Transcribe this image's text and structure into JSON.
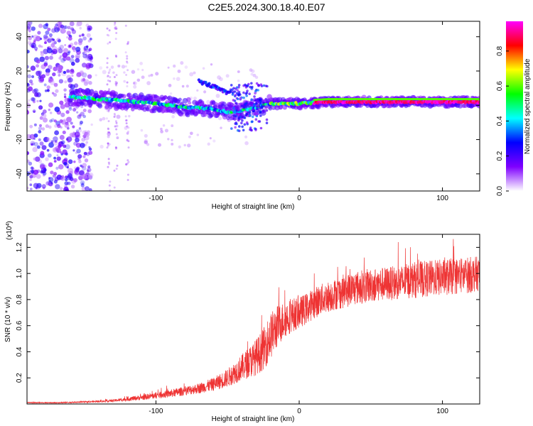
{
  "figure": {
    "title": "C2E5.2024.300.18.40.E07"
  },
  "chart_data": [
    {
      "type": "heatmap",
      "xlabel": "Height of straight line (km)",
      "ylabel": "Frequency (Hz)",
      "xlim": [
        -190,
        126
      ],
      "ylim": [
        -50,
        49
      ],
      "xticks": [
        -100,
        0,
        100
      ],
      "yticks": [
        -40,
        -20,
        0,
        20,
        40
      ],
      "grid": false,
      "colorbar": {
        "label": "Normalized spectral amplitude",
        "range": [
          0,
          0.97
        ],
        "ticks": [
          0.0,
          0.2,
          0.4,
          0.6,
          0.8
        ],
        "tick_labels": [
          "0.0",
          "0.2",
          "0.4",
          "0.6",
          "0.8"
        ],
        "colormap": [
          "#ffffff",
          "#7f00ff",
          "#0000ff",
          "#00ffff",
          "#00ff00",
          "#ffff00",
          "#ff0000",
          "#ff00ff"
        ]
      },
      "features": [
        {
          "description": "main carrier line",
          "x_range": [
            -160,
            126
          ],
          "y_path": [
            [
              -160,
              5
            ],
            [
              -130,
              3
            ],
            [
              -100,
              1
            ],
            [
              -80,
              -1
            ],
            [
              -60,
              -2
            ],
            [
              -50,
              -4
            ],
            [
              -40,
              -3
            ],
            [
              -20,
              1
            ],
            [
              0,
              1
            ],
            [
              20,
              2
            ],
            [
              60,
              2
            ],
            [
              100,
              2
            ],
            [
              126,
              2
            ]
          ],
          "peak_amplitude": 0.95
        },
        {
          "description": "noise region",
          "x_range": [
            -190,
            -145
          ],
          "y_range": [
            -50,
            49
          ],
          "peak_amplitude": 0.2
        },
        {
          "description": "upper branch",
          "x_range": [
            -70,
            -48
          ],
          "y_path": [
            [
              -70,
              14
            ],
            [
              -60,
              11
            ],
            [
              -50,
              7
            ]
          ],
          "peak_amplitude": 0.3
        }
      ]
    },
    {
      "type": "line",
      "xlabel": "Height of straight line (km)",
      "ylabel": "SNR (10 * v/v)",
      "y_multiplier_label": "(x10",
      "y_multiplier_exp": "4",
      "y_multiplier_close": ")",
      "xlim": [
        -190,
        126
      ],
      "ylim": [
        0,
        13000
      ],
      "xticks": [
        -100,
        0,
        100
      ],
      "yticks": [
        2000,
        4000,
        6000,
        8000,
        10000,
        12000
      ],
      "ytick_labels": [
        "0.2",
        "0.4",
        "0.6",
        "0.8",
        "1.0",
        "1.2"
      ],
      "color": "#ee3333",
      "grid": false,
      "series": [
        {
          "x": [
            -190,
            -170,
            -150,
            -130,
            -110,
            -90,
            -70,
            -60,
            -50,
            -40,
            -30,
            -25,
            -20,
            -15,
            -10,
            -5,
            0,
            5,
            10,
            15,
            20,
            25,
            30,
            40,
            50,
            60,
            70,
            80,
            90,
            100,
            110,
            120,
            126
          ],
          "mean": [
            100,
            100,
            150,
            250,
            500,
            800,
            1200,
            1500,
            2000,
            2800,
            3600,
            4200,
            5200,
            6000,
            6500,
            6800,
            7000,
            7300,
            7700,
            8000,
            8200,
            8400,
            8600,
            8900,
            9100,
            9200,
            9300,
            9500,
            9600,
            9700,
            9800,
            9900,
            10000
          ],
          "spread": [
            40,
            40,
            60,
            100,
            200,
            300,
            400,
            500,
            700,
            1000,
            1400,
            1600,
            1800,
            1600,
            1400,
            1300,
            1200,
            1200,
            1200,
            1200,
            1200,
            1200,
            1300,
            1300,
            1300,
            1300,
            1300,
            1400,
            1400,
            1400,
            1400,
            1400,
            1300
          ]
        }
      ]
    }
  ]
}
